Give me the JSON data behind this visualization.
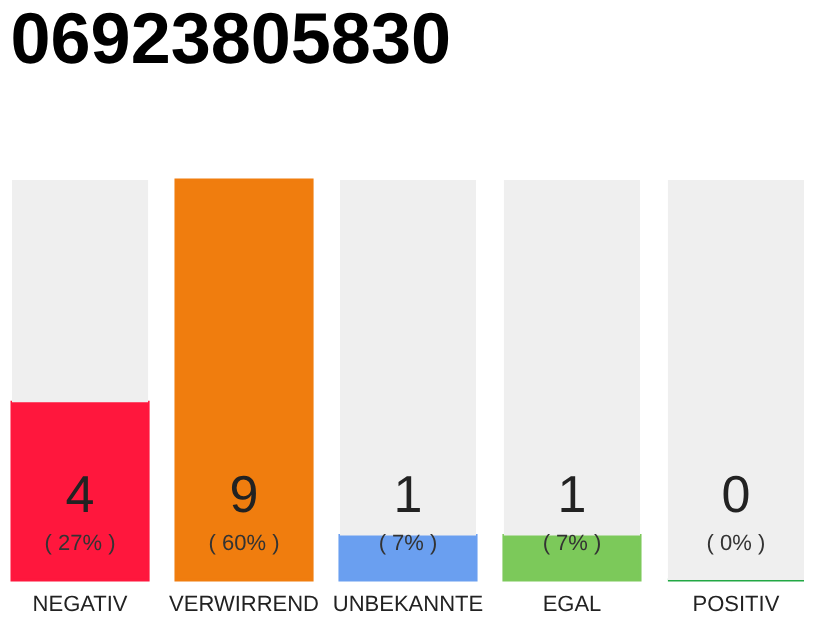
{
  "chart_data": {
    "type": "bar",
    "title": "06923805830",
    "stacked": true,
    "categories": [
      "NEGATIV",
      "VERWIRREND",
      "UNBEKANNTE",
      "EGAL",
      "POSITIV"
    ],
    "series": [
      {
        "colors": [
          "#ff173d",
          "#f07d0e",
          "#6a9ff0",
          "#7cc95a",
          "#22a844"
        ],
        "values": [
          4,
          9,
          1,
          1,
          0
        ],
        "data_labels": true
      },
      {
        "color": "#efefef",
        "values": [
          5,
          0,
          8,
          8,
          9
        ]
      }
    ],
    "annotations": [
      "( 27% )",
      "( 60% )",
      "( 7% )",
      "( 7% )",
      "( 0% )"
    ],
    "tick_labels": "x",
    "grid": false
  }
}
